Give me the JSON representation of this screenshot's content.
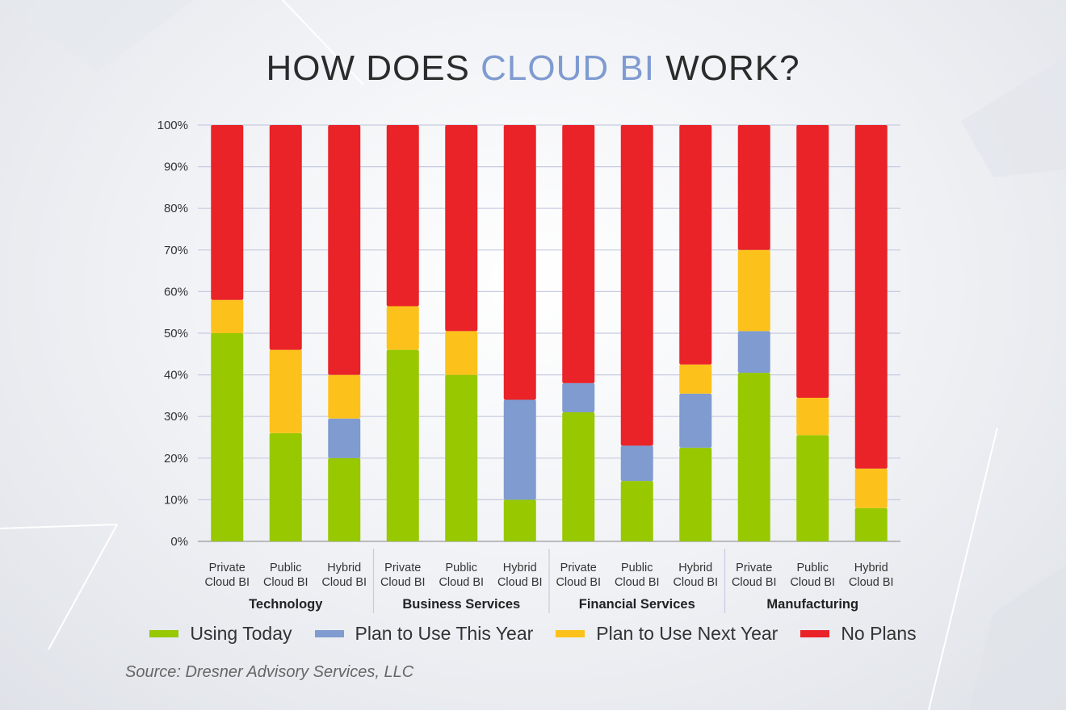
{
  "title": {
    "part1": "HOW DOES ",
    "accent": "CLOUD BI",
    "part2": " WORK?"
  },
  "colors": {
    "accent": "#7f9bd0"
  },
  "chart_data": {
    "type": "bar",
    "stacked": true,
    "title": "HOW DOES CLOUD BI WORK?",
    "ylim": [
      0,
      100
    ],
    "yticks": [
      "0%",
      "10%",
      "20%",
      "30%",
      "40%",
      "50%",
      "60%",
      "70%",
      "80%",
      "90%",
      "100%"
    ],
    "grid": true,
    "legend_placement": "bottom",
    "groups": [
      "Technology",
      "Business Services",
      "Financial Services",
      "Manufacturing"
    ],
    "categories": [
      [
        "Private",
        "Cloud BI"
      ],
      [
        "Public",
        "Cloud BI"
      ],
      [
        "Hybrid",
        "Cloud BI"
      ],
      [
        "Private",
        "Cloud BI"
      ],
      [
        "Public",
        "Cloud BI"
      ],
      [
        "Hybrid",
        "Cloud BI"
      ],
      [
        "Private",
        "Cloud BI"
      ],
      [
        "Public",
        "Cloud BI"
      ],
      [
        "Hybrid",
        "Cloud BI"
      ],
      [
        "Private",
        "Cloud BI"
      ],
      [
        "Public",
        "Cloud BI"
      ],
      [
        "Hybrid",
        "Cloud BI"
      ]
    ],
    "series": [
      {
        "name": "Using Today",
        "color": "#97c800",
        "values": [
          50,
          26,
          20,
          46,
          40,
          10,
          31,
          14.5,
          22.5,
          40.5,
          25.5,
          8
        ]
      },
      {
        "name": "Plan to Use This Year",
        "color": "#7f9bd0",
        "values": [
          0,
          0,
          9.5,
          0,
          0,
          24,
          7,
          8.5,
          13,
          10,
          0,
          0
        ]
      },
      {
        "name": "Plan to Use Next Year",
        "color": "#fcc21b",
        "values": [
          8,
          20,
          10.5,
          10.5,
          10.5,
          0,
          0,
          0,
          7,
          19.5,
          9,
          9.5
        ]
      },
      {
        "name": "No Plans",
        "color": "#ea2328",
        "values": [
          42,
          54,
          60,
          43.5,
          49.5,
          66,
          62,
          77,
          57.5,
          30,
          65.5,
          82.5
        ]
      }
    ]
  },
  "source": "Source: Dresner Advisory Services, LLC"
}
